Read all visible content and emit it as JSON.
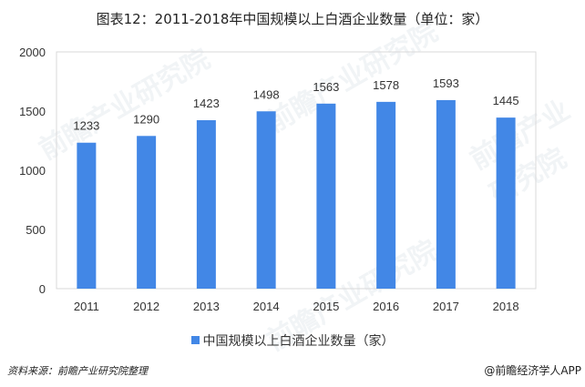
{
  "title": "图表12：2011-2018年中国规模以上白酒企业数量（单位：家）",
  "source": "资料来源：前瞻产业研究院整理",
  "credit": "@前瞻经济学人APP",
  "watermark": "前瞻产业研究院",
  "chart_data": {
    "type": "bar",
    "title": "图表12：2011-2018年中国规模以上白酒企业数量（单位：家）",
    "categories": [
      "2011",
      "2012",
      "2013",
      "2014",
      "2015",
      "2016",
      "2017",
      "2018"
    ],
    "series": [
      {
        "name": "中国规模以上白酒企业数量（家）",
        "values": [
          1233,
          1290,
          1423,
          1498,
          1563,
          1578,
          1593,
          1445
        ],
        "color": "#4287e6"
      }
    ],
    "yticks": [
      "0",
      "500",
      "1000",
      "1500",
      "2000"
    ],
    "ylim": [
      0,
      2000
    ],
    "xlabel": "",
    "ylabel": "",
    "grid": false,
    "legend": "bottom-center"
  }
}
